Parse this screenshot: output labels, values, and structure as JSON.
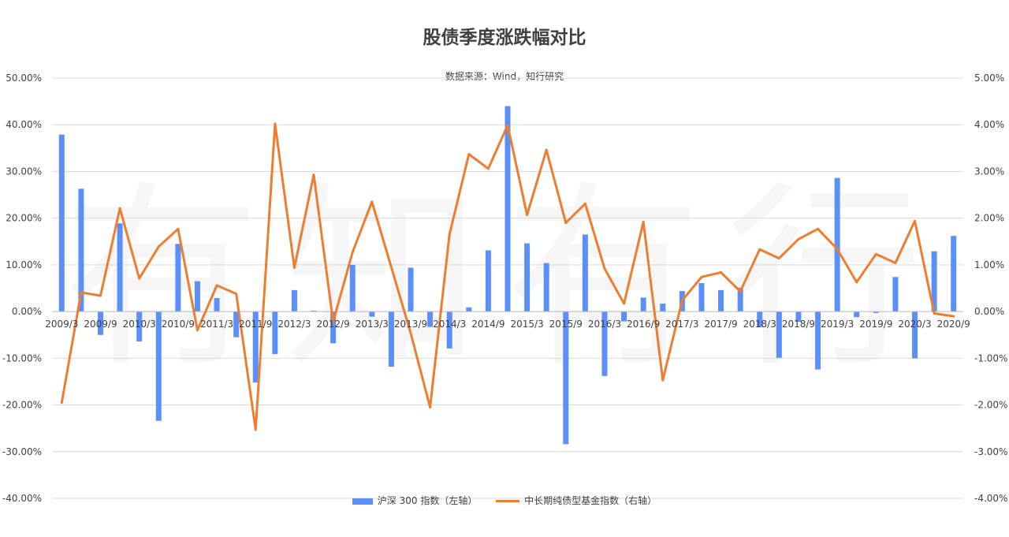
{
  "chart_data": {
    "type": "bar",
    "title": "股债季度涨跌幅对比",
    "subtitle": "数据来源：Wind，知行研究",
    "categories": [
      "2009/3",
      "2009/6",
      "2009/9",
      "2009/12",
      "2010/3",
      "2010/6",
      "2010/9",
      "2010/12",
      "2011/3",
      "2011/6",
      "2011/9",
      "2011/12",
      "2012/3",
      "2012/6",
      "2012/9",
      "2012/12",
      "2013/3",
      "2013/6",
      "2013/9",
      "2013/12",
      "2014/3",
      "2014/6",
      "2014/9",
      "2014/12",
      "2015/3",
      "2015/6",
      "2015/9",
      "2015/12",
      "2016/3",
      "2016/6",
      "2016/9",
      "2016/12",
      "2017/3",
      "2017/6",
      "2017/9",
      "2017/12",
      "2018/3",
      "2018/6",
      "2018/9",
      "2018/12",
      "2019/3",
      "2019/6",
      "2019/9",
      "2019/12",
      "2020/3",
      "2020/6",
      "2020/9"
    ],
    "x_tick_labels": [
      "2009/3",
      "2009/9",
      "2010/3",
      "2010/9",
      "2011/3",
      "2011/9",
      "2012/3",
      "2012/9",
      "2013/3",
      "2013/9",
      "2014/3",
      "2014/9",
      "2015/3",
      "2015/9",
      "2016/3",
      "2016/9",
      "2017/3",
      "2017/9",
      "2018/3",
      "2018/9",
      "2019/3",
      "2019/9",
      "2020/3",
      "2020/9"
    ],
    "series": [
      {
        "name": "沪深 300 指数（左轴）",
        "type": "bar",
        "axis": "left",
        "color": "#5b8ff9",
        "values": [
          37.9,
          26.3,
          -5.0,
          18.9,
          -6.4,
          -23.4,
          14.5,
          6.5,
          2.9,
          -5.5,
          -15.2,
          -9.1,
          4.6,
          0.2,
          -6.8,
          10.0,
          -1.1,
          -11.8,
          9.4,
          -3.3,
          -7.9,
          0.9,
          13.1,
          44.0,
          14.6,
          10.4,
          -28.4,
          16.5,
          -13.8,
          -2.1,
          3.0,
          1.7,
          4.4,
          6.1,
          4.6,
          5.1,
          -3.3,
          -9.9,
          -2.2,
          -12.4,
          28.6,
          -1.2,
          -0.3,
          7.4,
          -10.0,
          12.9,
          16.2
        ]
      },
      {
        "name": "中长期纯债型基金指数（右轴）",
        "type": "line",
        "axis": "right",
        "color": "#ed7d31",
        "values": [
          -1.95,
          0.41,
          0.34,
          2.21,
          0.71,
          1.39,
          1.77,
          -0.4,
          0.56,
          0.38,
          -2.53,
          4.02,
          0.94,
          2.93,
          -0.22,
          1.27,
          2.35,
          0.95,
          -0.46,
          -2.05,
          1.65,
          3.37,
          3.06,
          3.99,
          2.07,
          3.46,
          1.9,
          2.31,
          0.92,
          0.17,
          1.92,
          -1.47,
          0.24,
          0.74,
          0.84,
          0.43,
          1.33,
          1.14,
          1.55,
          1.77,
          1.34,
          0.63,
          1.23,
          1.04,
          1.94,
          -0.04,
          -0.1
        ]
      }
    ],
    "y_left": {
      "min": -40,
      "max": 50,
      "step": 10,
      "tick_labels": [
        "-40.00%",
        "-30.00%",
        "-20.00%",
        "-10.00%",
        "0.00%",
        "10.00%",
        "20.00%",
        "30.00%",
        "40.00%",
        "50.00%"
      ]
    },
    "y_right": {
      "min": -4,
      "max": 5,
      "step": 1,
      "tick_labels": [
        "-4.00%",
        "-3.00%",
        "-2.00%",
        "-1.00%",
        "0.00%",
        "1.00%",
        "2.00%",
        "3.00%",
        "4.00%",
        "5.00%"
      ]
    },
    "grid": true,
    "legend_position": "bottom"
  },
  "watermark": "有知有行"
}
